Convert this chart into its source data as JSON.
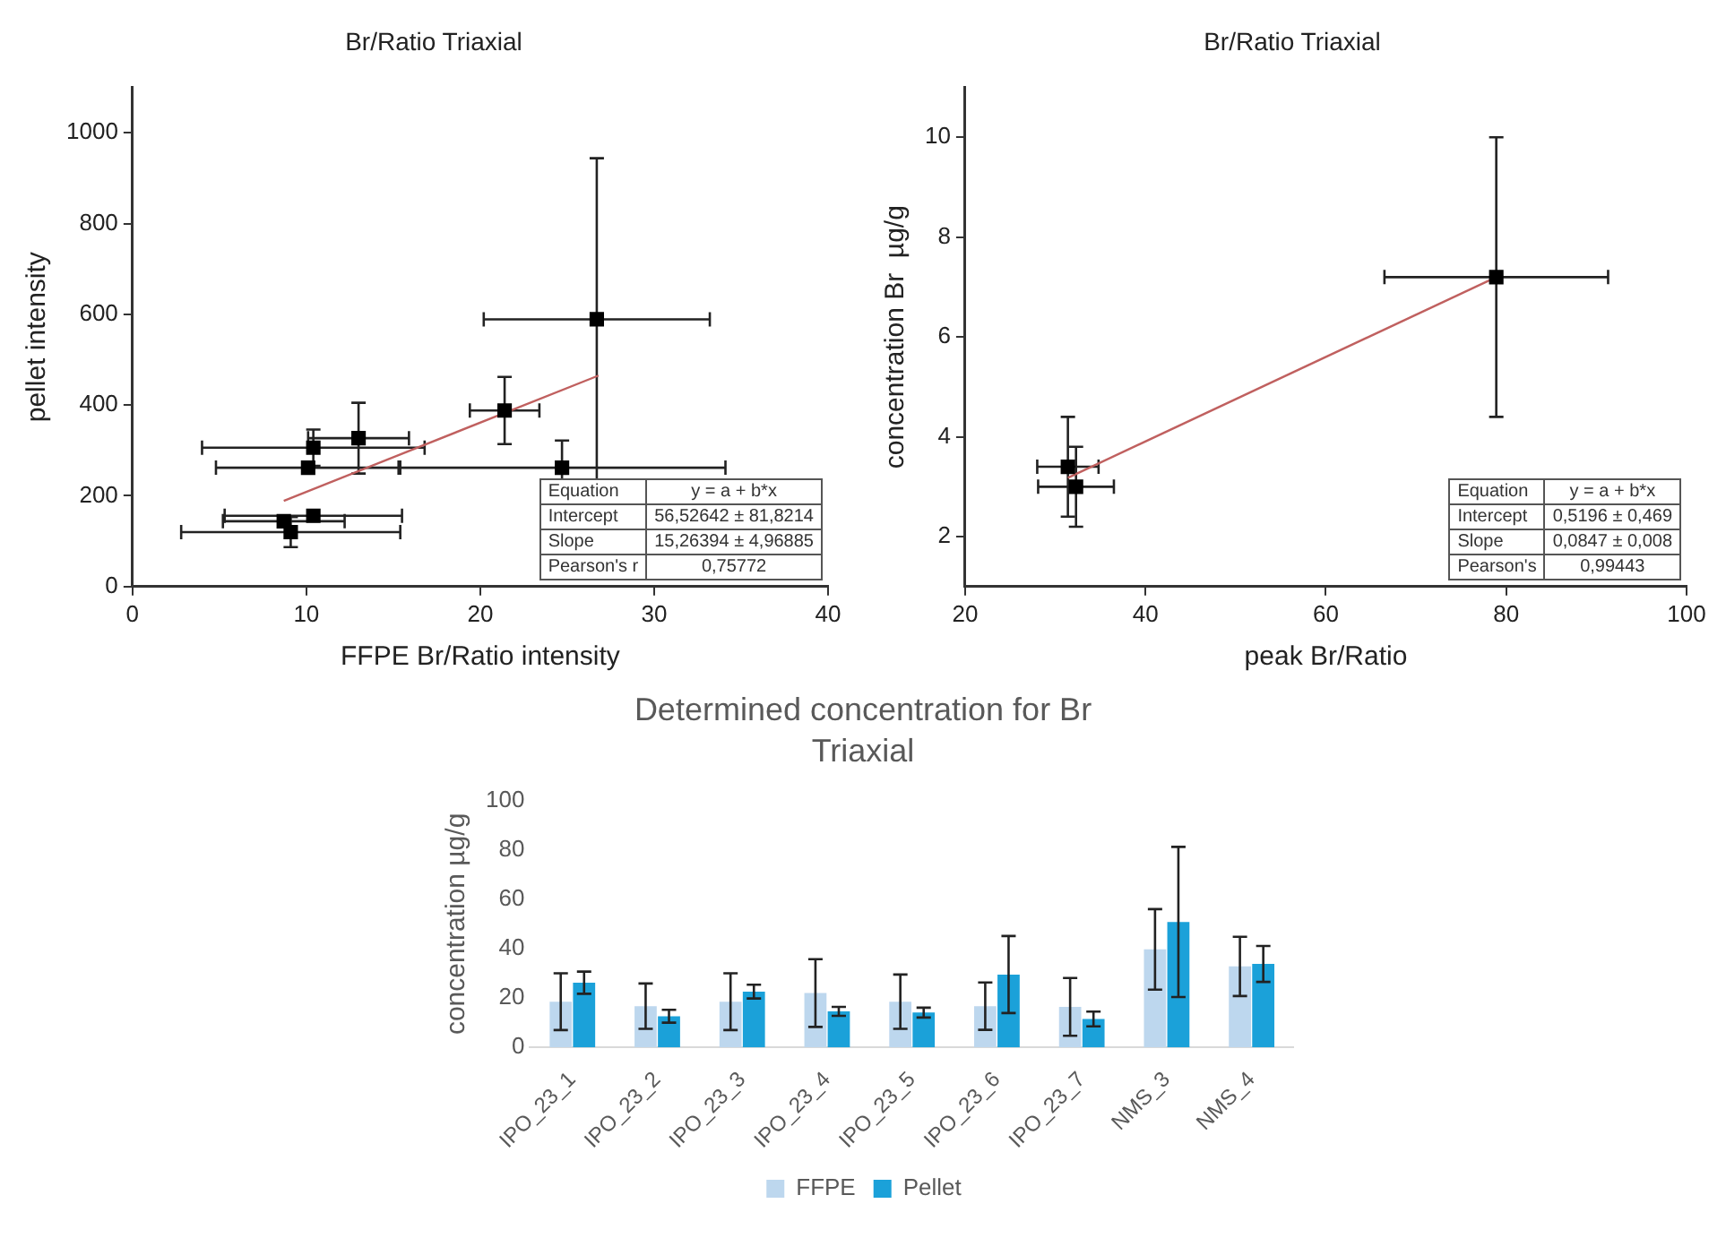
{
  "chart_data": [
    {
      "type": "scatter",
      "title": "Br/Ratio Triaxial",
      "xlabel": "FFPE Br/Ratio intensity",
      "ylabel": "pellet intensity",
      "xlim": [
        0,
        40
      ],
      "xticks": [
        0,
        10,
        20,
        30,
        40
      ],
      "ylim": [
        0,
        1100
      ],
      "yticks": [
        0,
        200,
        400,
        600,
        800,
        1000
      ],
      "grid": false,
      "legend": false,
      "series": [
        {
          "marker": "square",
          "color": "#000000",
          "x": [
            26.7,
            21.4,
            24.7,
            13.0,
            10.4,
            10.1,
            10.4,
            8.7,
            9.1
          ],
          "values": [
            589,
            388,
            262,
            327,
            306,
            262,
            156,
            144,
            120
          ],
          "errors": [
            355,
            74,
            60,
            78,
            40,
            null,
            null,
            null,
            33
          ],
          "xerrors": [
            6.5,
            2.0,
            9.4,
            2.9,
            6.4,
            5.3,
            5.1,
            3.5,
            6.3
          ]
        },
        {
          "type": "line",
          "marker": "none",
          "color": "#c0605f",
          "x": [
            8.7,
            26.8
          ],
          "values": [
            189,
            465
          ]
        }
      ],
      "annotations": [
        "Equation",
        "y = a + b*x",
        "Intercept",
        "56,52642 ± 81,8214",
        "Slope",
        "15,26394 ± 4,96885",
        "Pearson's r",
        "0,75772"
      ]
    },
    {
      "type": "scatter",
      "title": "Br/Ratio Triaxial",
      "xlabel": "peak Br/Ratio",
      "ylabel": "concentration Br  µg/g",
      "xlim": [
        20,
        100
      ],
      "xticks": [
        20,
        40,
        60,
        80,
        100
      ],
      "ylim": [
        1,
        11
      ],
      "yticks": [
        2,
        4,
        6,
        8,
        10
      ],
      "grid": false,
      "legend": false,
      "series": [
        {
          "marker": "square",
          "color": "#000000",
          "x": [
            31.4,
            32.3,
            78.9
          ],
          "values": [
            3.4,
            3.0,
            7.2
          ],
          "errors": [
            1.0,
            0.8,
            2.8
          ],
          "xerrors": [
            3.4,
            4.2,
            12.4
          ]
        },
        {
          "type": "line",
          "marker": "none",
          "color": "#c0605f",
          "x": [
            31.4,
            78.9
          ],
          "values": [
            3.18,
            7.2
          ]
        }
      ],
      "annotations": [
        "Equation",
        "y = a + b*x",
        "Intercept",
        "0,5196 ± 0,469",
        "Slope",
        "0,0847 ± 0,008",
        "Pearson's",
        "0,99443"
      ]
    },
    {
      "type": "bar",
      "title": "Determined concentration for Br Triaxial",
      "ylabel": "concentration µg/g",
      "categories": [
        "IPO_23_1",
        "IPO_23_2",
        "IPO_23_3",
        "IPO_23_4",
        "IPO_23_5",
        "IPO_23_6",
        "IPO_23_7",
        "NMS_3",
        "NMS_4"
      ],
      "ylim": [
        0,
        100
      ],
      "yticks": [
        0,
        20,
        40,
        60,
        80,
        100
      ],
      "grid": false,
      "legend": "bottom",
      "series": [
        {
          "name": "FFPE",
          "color": "#bdd7ee",
          "values": [
            18.5,
            16.7,
            18.5,
            22,
            18.5,
            16.7,
            16.4,
            39.7,
            32.8
          ],
          "errors": [
            11.5,
            9.2,
            11.5,
            13.7,
            11,
            9.6,
            11.7,
            16.3,
            12
          ]
        },
        {
          "name": "Pellet",
          "color": "#1ba1d9",
          "values": [
            26.2,
            12.6,
            22.6,
            14.6,
            14.1,
            29.5,
            11.5,
            50.8,
            33.8
          ],
          "errors": [
            4.5,
            2.6,
            2.8,
            1.8,
            2,
            15.6,
            3,
            30.4,
            7.3
          ]
        }
      ]
    }
  ]
}
